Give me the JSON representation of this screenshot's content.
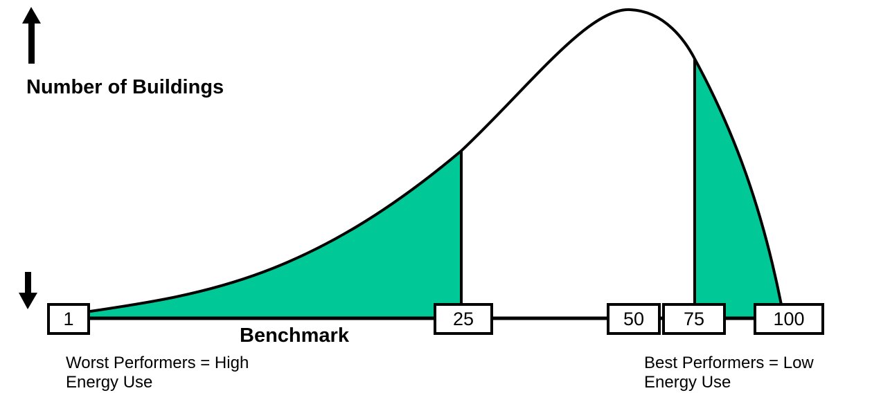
{
  "axis_label": "Number of Buildings",
  "benchmark_label": "Benchmark",
  "percentiles": [
    1,
    25,
    50,
    75,
    100
  ],
  "left_note": [
    "Worst Performers = High",
    "Energy Use"
  ],
  "right_note": [
    "Best Performers = Low",
    "Energy Use"
  ]
}
